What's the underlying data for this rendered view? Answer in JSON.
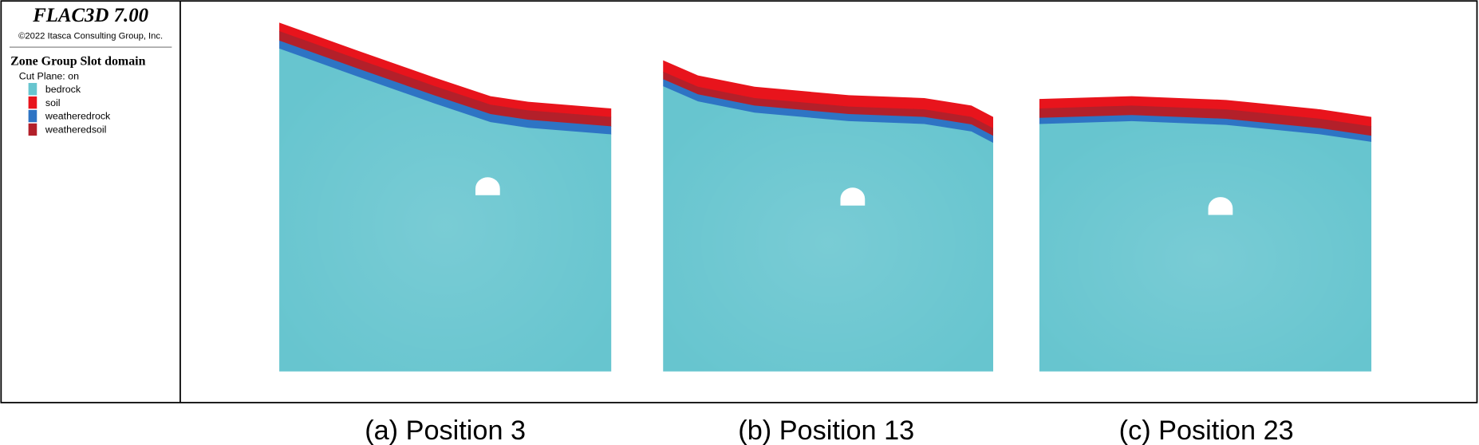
{
  "header": {
    "title": "FLAC3D 7.00",
    "copyright": "©2022 Itasca Consulting Group, Inc."
  },
  "legend": {
    "title": "Zone Group Slot domain",
    "subtitle": "Cut Plane: on",
    "items": [
      {
        "label": "bedrock",
        "color": "#67c5cf"
      },
      {
        "label": "soil",
        "color": "#e8141c"
      },
      {
        "label": "weatheredrock",
        "color": "#2e74c4"
      },
      {
        "label": "weatheredsoil",
        "color": "#b3202a"
      }
    ]
  },
  "panels": [
    {
      "caption": "(a) Position 3"
    },
    {
      "caption": "(b) Position 13"
    },
    {
      "caption": "(c) Position 23"
    }
  ]
}
